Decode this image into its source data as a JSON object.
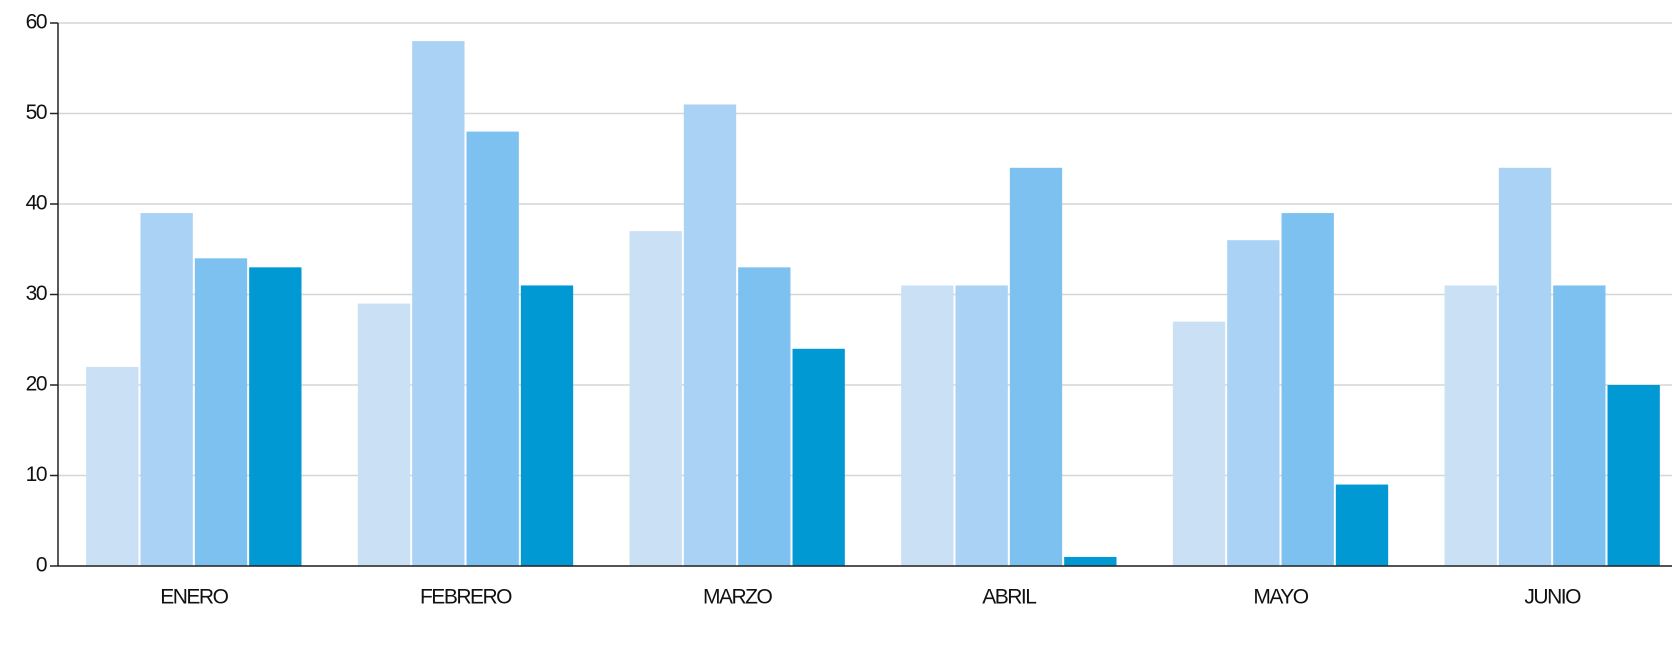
{
  "chart_data": {
    "type": "bar",
    "categories": [
      "ENERO",
      "FEBRERO",
      "MARZO",
      "ABRIL",
      "MAYO",
      "JUNIO"
    ],
    "series": [
      {
        "color": "#c9e0f5",
        "values": [
          22,
          29,
          37,
          31,
          27,
          31
        ]
      },
      {
        "color": "#aad2f4",
        "values": [
          39,
          58,
          51,
          31,
          36,
          44
        ]
      },
      {
        "color": "#7dc1f0",
        "values": [
          34,
          48,
          33,
          44,
          39,
          31
        ]
      },
      {
        "color": "#0099d4",
        "values": [
          33,
          31,
          24,
          1,
          9,
          20
        ]
      }
    ],
    "ylim": [
      0,
      60
    ],
    "yticks": [
      0,
      10,
      20,
      30,
      40,
      50,
      60
    ],
    "grid": true
  }
}
